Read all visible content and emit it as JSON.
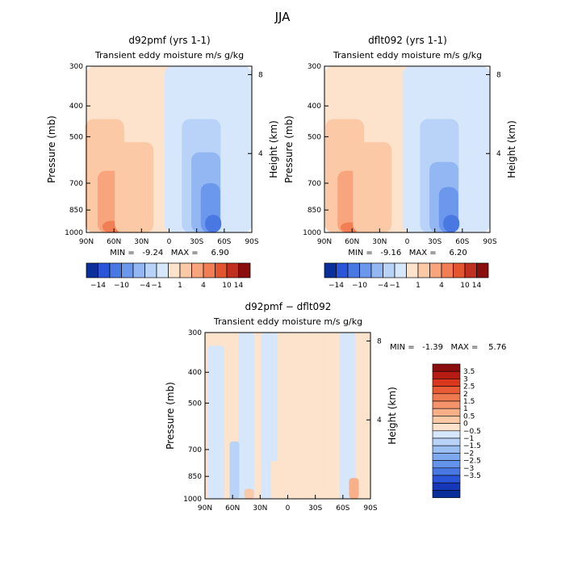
{
  "figure_title": "JJA",
  "colors": {
    "warm": [
      "#fde2cc",
      "#fbc9a6",
      "#f8a47d",
      "#f27e55",
      "#e2552f",
      "#c02f1f",
      "#8b0e0e"
    ],
    "cool": [
      "#d6e6fb",
      "#b8d3f7",
      "#93b7f2",
      "#6b97ec",
      "#4a78e2",
      "#2b55d8",
      "#0a2f9a"
    ],
    "diff_pos": [
      "#fde2cc",
      "#fbc9a6",
      "#f9af88",
      "#f5936a",
      "#ef7a4f",
      "#e95b34",
      "#d9381f",
      "#b71c14",
      "#8b0e0e"
    ],
    "diff_neg": [
      "#d6e6fb",
      "#b8d3f7",
      "#9bbff3",
      "#7ea9ee",
      "#6393ea",
      "#4a78e2",
      "#2b55d8",
      "#1638b8",
      "#0a2f9a"
    ]
  },
  "chart_data": [
    {
      "type": "heatmap",
      "title": "d92pmf (yrs 1-1)",
      "subtitle": "Transient eddy moisture m/s g/kg",
      "ylabel": "Pressure (mb)",
      "right_label": "Height (km)",
      "x_ticks": [
        "90N",
        "60N",
        "30N",
        "0",
        "30S",
        "60S",
        "90S"
      ],
      "x_range": [
        90,
        -90
      ],
      "y_ticks": [
        300,
        400,
        500,
        700,
        850,
        1000
      ],
      "y_range": [
        1000,
        300
      ],
      "y_scale": "log",
      "right_ticks": [
        8,
        4
      ],
      "stats": "MIN =   -9.24   MAX =     6.90",
      "min": -9.24,
      "max": 6.9,
      "regions": [
        {
          "lat": 90,
          "top": 300,
          "level": 1,
          "sign": "pos"
        },
        {
          "lat": 5,
          "top": 300,
          "level": 1,
          "sign": "neg"
        },
        {
          "lat": 70,
          "top": 440,
          "level": 2,
          "sign": "pos"
        },
        {
          "lat": 62,
          "top": 640,
          "level": 3,
          "sign": "pos"
        },
        {
          "lat": 62,
          "top": 920,
          "level": 4,
          "sign": "pos"
        },
        {
          "lat": 38,
          "top": 520,
          "level": 2,
          "sign": "pos"
        },
        {
          "lat": -35,
          "top": 440,
          "level": 2,
          "sign": "neg"
        },
        {
          "lat": -40,
          "top": 560,
          "level": 3,
          "sign": "neg"
        },
        {
          "lat": -45,
          "top": 700,
          "level": 4,
          "sign": "neg"
        },
        {
          "lat": -48,
          "top": 880,
          "level": 5,
          "sign": "neg"
        }
      ]
    },
    {
      "type": "heatmap",
      "title": "dflt092 (yrs 1-1)",
      "subtitle": "Transient eddy moisture m/s g/kg",
      "ylabel": "Pressure (mb)",
      "right_label": "Height (km)",
      "x_ticks": [
        "90N",
        "60N",
        "30N",
        "0",
        "30S",
        "60S",
        "90S"
      ],
      "x_range": [
        90,
        -90
      ],
      "y_ticks": [
        300,
        400,
        500,
        700,
        850,
        1000
      ],
      "y_range": [
        1000,
        300
      ],
      "y_scale": "log",
      "right_ticks": [
        8,
        4
      ],
      "stats": "MIN =   -9.16   MAX =     6.20",
      "min": -9.16,
      "max": 6.2,
      "regions": [
        {
          "lat": 90,
          "top": 300,
          "level": 1,
          "sign": "pos"
        },
        {
          "lat": 5,
          "top": 300,
          "level": 1,
          "sign": "neg"
        },
        {
          "lat": 68,
          "top": 440,
          "level": 2,
          "sign": "pos"
        },
        {
          "lat": 60,
          "top": 640,
          "level": 3,
          "sign": "pos"
        },
        {
          "lat": 62,
          "top": 930,
          "level": 4,
          "sign": "pos"
        },
        {
          "lat": 38,
          "top": 520,
          "level": 2,
          "sign": "pos"
        },
        {
          "lat": -35,
          "top": 440,
          "level": 2,
          "sign": "neg"
        },
        {
          "lat": -40,
          "top": 600,
          "level": 3,
          "sign": "neg"
        },
        {
          "lat": -45,
          "top": 720,
          "level": 4,
          "sign": "neg"
        },
        {
          "lat": -48,
          "top": 880,
          "level": 5,
          "sign": "neg"
        }
      ]
    },
    {
      "type": "heatmap",
      "title": "d92pmf − dflt092",
      "subtitle": "Transient eddy moisture m/s g/kg",
      "ylabel": "Pressure (mb)",
      "right_label": "Height (km)",
      "x_ticks": [
        "90N",
        "60N",
        "30N",
        "0",
        "30S",
        "60S",
        "90S"
      ],
      "x_range": [
        90,
        -90
      ],
      "y_ticks": [
        300,
        400,
        500,
        700,
        850,
        1000
      ],
      "y_range": [
        1000,
        300
      ],
      "y_scale": "log",
      "right_ticks": [
        8,
        4
      ],
      "stats": "MIN =   -1.39   MAX =    5.76",
      "min": -1.39,
      "max": 5.76,
      "regions": [
        {
          "lat": 90,
          "top": 300,
          "level": 1,
          "sign": "pos"
        },
        {
          "lat": 78,
          "top": 330,
          "level": 1,
          "sign": "neg"
        },
        {
          "lat": 45,
          "top": 300,
          "level": 1,
          "sign": "neg"
        },
        {
          "lat": 20,
          "top": 300,
          "level": 1,
          "sign": "neg"
        },
        {
          "lat": -30,
          "top": 300,
          "level": 1,
          "sign": "pos"
        },
        {
          "lat": -65,
          "top": 300,
          "level": 1,
          "sign": "neg"
        },
        {
          "lat": 58,
          "top": 660,
          "level": 2,
          "sign": "neg"
        },
        {
          "lat": 10,
          "top": 760,
          "level": 1,
          "sign": "pos"
        },
        {
          "lat": 42,
          "top": 930,
          "level": 2,
          "sign": "pos"
        },
        {
          "lat": -72,
          "top": 860,
          "level": 3,
          "sign": "pos"
        }
      ]
    }
  ],
  "colorbar_top": {
    "labels": [
      "-14",
      "-10",
      "-4",
      "-1",
      "1",
      "4",
      "10",
      "14"
    ]
  },
  "colorbar_diff": {
    "labels": [
      "3.5",
      "3",
      "2.5",
      "2",
      "1.5",
      "1",
      "0.5",
      "0",
      "-0.5",
      "-1",
      "-1.5",
      "-2",
      "-2.5",
      "-3",
      "-3.5"
    ]
  }
}
